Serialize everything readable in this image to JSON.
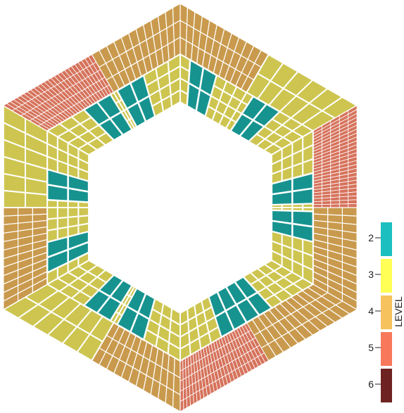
{
  "legend": {
    "title": "LEVEL",
    "levels": [
      {
        "level": 2,
        "label": "2",
        "color": "#1bbfbf"
      },
      {
        "level": 3,
        "label": "3",
        "color": "#ffff55"
      },
      {
        "level": 4,
        "label": "4",
        "color": "#f6c25e"
      },
      {
        "level": 5,
        "label": "5",
        "color": "#f7785a"
      },
      {
        "level": 6,
        "label": "6",
        "color": "#6e2322"
      }
    ]
  },
  "mesh_colors": {
    "2": "#17938f",
    "3": "#cdc550",
    "4": "#c99a4d",
    "5": "#d6735c"
  },
  "sectors": [
    {
      "name": "top-left-sector",
      "description_levels": {
        "outer": 4,
        "mid": 3,
        "patch": 2,
        "patch_pos": 0.35
      }
    },
    {
      "name": "top-right-sector",
      "description_levels": {
        "outer": 3,
        "mid": 3,
        "patch": 2,
        "patch_pos": 0.3
      }
    },
    {
      "name": "right-upper-sector",
      "description_levels": {
        "outer": 5,
        "mid": 3,
        "patch": 2,
        "patch_pos": 0.75
      }
    },
    {
      "name": "right-lower-sector",
      "description_levels": {
        "outer": 4,
        "mid": 3,
        "patch": 2,
        "patch_pos": 0.25
      }
    },
    {
      "name": "bottom-right-sector",
      "description_levels": {
        "outer": 4,
        "mid": 3,
        "patch": 2,
        "patch_pos": 0.82
      }
    },
    {
      "name": "bottom-left-sector",
      "description_levels": {
        "outer": 5,
        "mid": 3,
        "patch": 2,
        "patch_pos": 0.18
      }
    },
    {
      "name": "left-lower-sector",
      "description_levels": {
        "outer": 4,
        "mid": 3,
        "patch": 2,
        "patch_pos": 0.75
      }
    },
    {
      "name": "left-upper-sector",
      "description_levels": {
        "outer": 3,
        "mid": 3,
        "patch": 2,
        "patch_pos": 0.25
      }
    }
  ]
}
